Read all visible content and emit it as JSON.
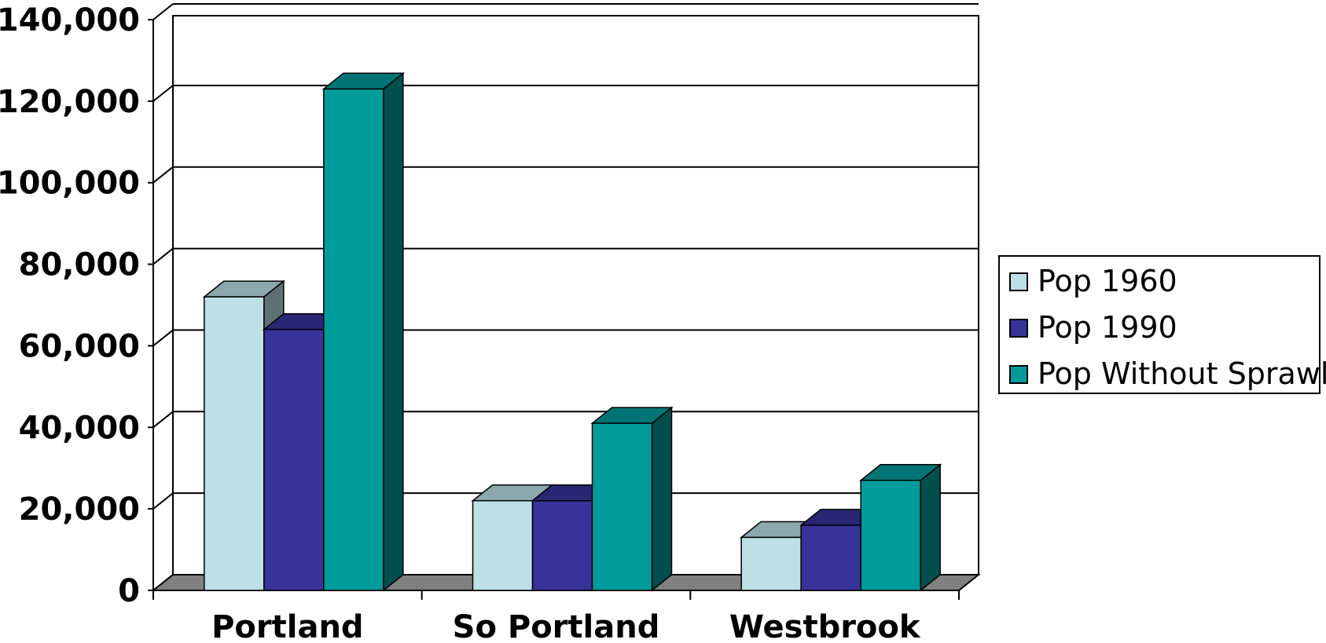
{
  "chart_data": {
    "type": "bar",
    "title": "",
    "xlabel": "",
    "ylabel": "",
    "categories": [
      "Portland",
      "So Portland",
      "Westbrook"
    ],
    "series": [
      {
        "name": "Pop 1960",
        "values": [
          72000,
          22000,
          13000
        ],
        "color": "#BCE0E5"
      },
      {
        "name": "Pop 1990",
        "values": [
          64000,
          22000,
          16000
        ],
        "color": "#373399"
      },
      {
        "name": "Pop Without Sprawl",
        "values": [
          123000,
          41000,
          27000
        ],
        "color": "#009B9B"
      }
    ],
    "ylim": [
      0,
      140000
    ],
    "yticks": [
      0,
      20000,
      40000,
      60000,
      80000,
      100000,
      120000,
      140000
    ],
    "ytick_labels": [
      "0",
      "20,000",
      "40,000",
      "60,000",
      "80,000",
      "100,000",
      "120,000",
      "140,000"
    ],
    "grid": true,
    "legend_position": "right",
    "style": "3d-clustered-column"
  }
}
